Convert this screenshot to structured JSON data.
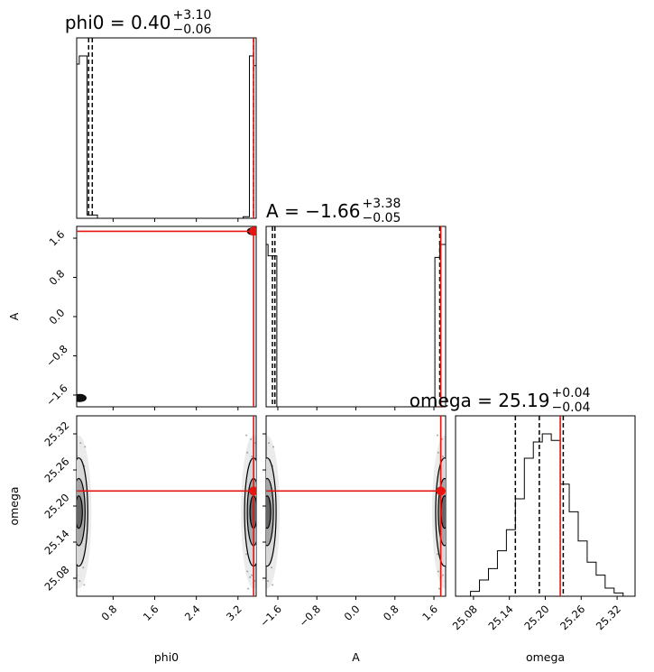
{
  "chart_data": {
    "type": "corner",
    "parameters": [
      "phi0",
      "A",
      "omega"
    ],
    "truths": {
      "phi0": 3.5,
      "A": 1.74,
      "omega": 25.225
    },
    "ranges": {
      "phi0": [
        0.1,
        3.55
      ],
      "A": [
        -1.84,
        1.84
      ],
      "omega": [
        25.05,
        25.35
      ]
    },
    "ticks": {
      "phi0": {
        "values": [
          0.8,
          1.6,
          2.4,
          3.2
        ],
        "labels": [
          "0.8",
          "1.6",
          "2.4",
          "3.2"
        ]
      },
      "A": {
        "values": [
          -1.6,
          -0.8,
          0.0,
          0.8,
          1.6
        ],
        "labels": [
          "−1.6",
          "−0.8",
          "0.0",
          "0.8",
          "1.6"
        ]
      },
      "omega": {
        "values": [
          25.08,
          25.14,
          25.2,
          25.26,
          25.32
        ],
        "labels": [
          "25.08",
          "25.14",
          "25.20",
          "25.26",
          "25.32"
        ]
      }
    },
    "axis_labels": {
      "x": [
        "phi0",
        "A",
        "omega"
      ],
      "y": [
        "",
        "A",
        "omega"
      ]
    },
    "titles": [
      {
        "param": "phi0",
        "main": "phi0 = 0.40",
        "plus": "+3.10",
        "minus": "−0.06"
      },
      {
        "param": "A",
        "main": "A = −1.66",
        "plus": "+3.38",
        "minus": "−0.05"
      },
      {
        "param": "omega",
        "main": "omega = 25.19",
        "plus": "+0.04",
        "minus": "−0.04"
      }
    ],
    "quantiles": {
      "phi0": [
        0.33,
        0.4,
        3.5
      ],
      "A": [
        -1.71,
        -1.66,
        1.72
      ],
      "omega": [
        25.15,
        25.19,
        25.23
      ]
    },
    "histograms": {
      "phi0": {
        "edges": [
          0.1,
          0.15,
          0.3,
          0.5,
          3.3,
          3.42,
          3.5,
          3.55
        ],
        "counts": [
          0.95,
          1.0,
          0.02,
          0.0,
          0.01,
          1.0,
          0.94
        ]
      },
      "A": {
        "edges": [
          -1.84,
          -1.8,
          -1.62,
          1.62,
          1.72,
          1.84
        ],
        "counts": [
          1.0,
          0.93,
          0.0,
          0.92,
          1.0
        ]
      },
      "omega": {
        "edges": [
          25.075,
          25.09,
          25.105,
          25.12,
          25.135,
          25.15,
          25.165,
          25.18,
          25.195,
          25.21,
          25.225,
          25.24,
          25.255,
          25.27,
          25.285,
          25.3,
          25.315,
          25.33
        ],
        "counts": [
          0.03,
          0.1,
          0.17,
          0.28,
          0.41,
          0.6,
          0.85,
          0.95,
          1.0,
          0.96,
          0.69,
          0.52,
          0.34,
          0.21,
          0.13,
          0.05,
          0.02
        ]
      }
    },
    "joint_clusters": {
      "A_vs_phi0": [
        {
          "x": 0.16,
          "y": -1.66
        },
        {
          "x": 3.5,
          "y": 1.74
        }
      ],
      "omega_vs_phi0": [
        {
          "x": 0.14,
          "y": 25.19
        },
        {
          "x": 3.5,
          "y": 25.19
        }
      ],
      "omega_vs_A": [
        {
          "x": -1.82,
          "y": 25.19
        },
        {
          "x": 1.82,
          "y": 25.19
        }
      ]
    },
    "colors": {
      "truth": "#e8140f",
      "hist": "#000000",
      "quantile": "#000000",
      "contour": "#000000"
    },
    "grid": false
  }
}
